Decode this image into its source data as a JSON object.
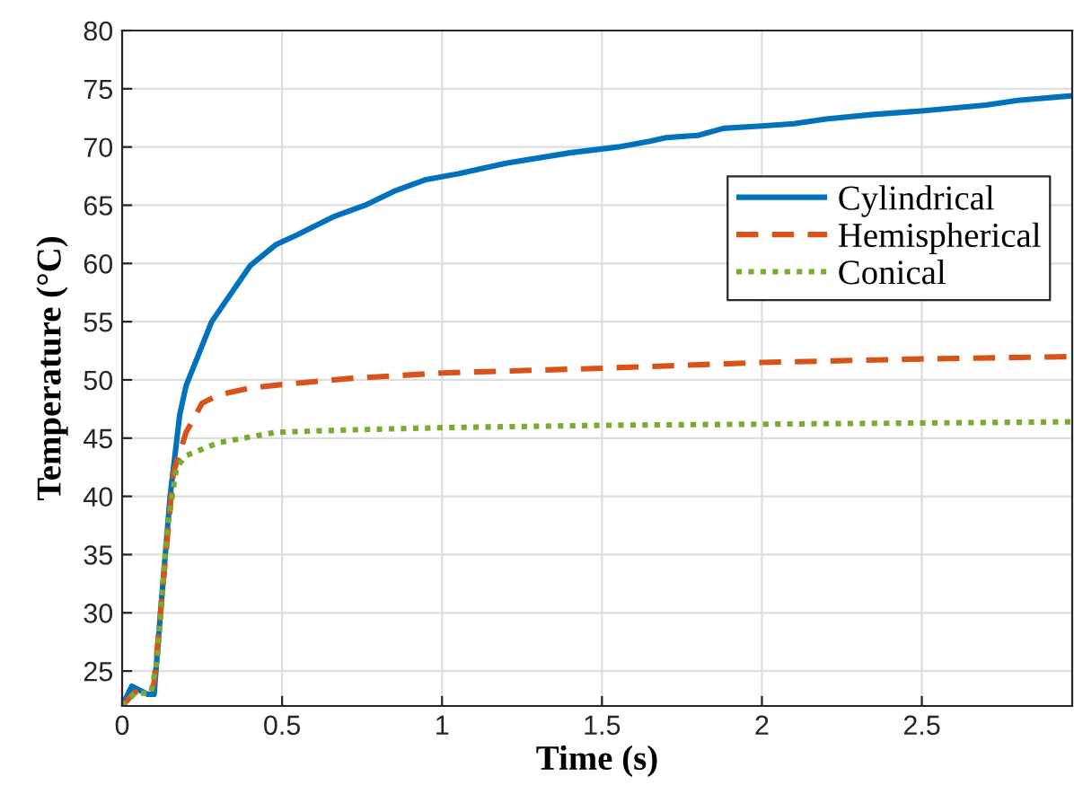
{
  "chart_data": {
    "type": "line",
    "xlabel": "Time (s)",
    "ylabel": "Temperature (°C)",
    "xlim": [
      0,
      2.97
    ],
    "ylim": [
      22,
      80
    ],
    "xticks": [
      0,
      0.5,
      1,
      1.5,
      2,
      2.5
    ],
    "yticks": [
      25,
      30,
      35,
      40,
      45,
      50,
      55,
      60,
      65,
      70,
      75,
      80
    ],
    "grid": true,
    "legend": "top right",
    "series": [
      {
        "name": "Cylindrical",
        "color": "#0072bd",
        "line_style": "solid",
        "x": [
          0,
          0.03,
          0.08,
          0.1,
          0.12,
          0.15,
          0.18,
          0.2,
          0.28,
          0.4,
          0.48,
          0.55,
          0.66,
          0.76,
          0.85,
          0.95,
          1.05,
          1.2,
          1.4,
          1.55,
          1.65,
          1.7,
          1.8,
          1.88,
          2.0,
          2.1,
          2.2,
          2.35,
          2.5,
          2.7,
          2.8,
          2.97
        ],
        "values": [
          22,
          23.7,
          23,
          23,
          30,
          40,
          47,
          49.5,
          55,
          59.8,
          61.6,
          62.5,
          64,
          65,
          66.2,
          67.2,
          67.7,
          68.6,
          69.5,
          70,
          70.5,
          70.8,
          71,
          71.6,
          71.8,
          72,
          72.4,
          72.8,
          73.1,
          73.6,
          74,
          74.4
        ]
      },
      {
        "name": "Hemispherical",
        "color": "#d95319",
        "line_style": "dashed",
        "x": [
          0,
          0.04,
          0.09,
          0.1,
          0.13,
          0.16,
          0.2,
          0.25,
          0.3,
          0.4,
          0.5,
          0.7,
          1.0,
          1.5,
          2.0,
          2.5,
          2.97
        ],
        "values": [
          22,
          23.2,
          23.2,
          24,
          33,
          42,
          45.5,
          48,
          48.7,
          49.3,
          49.6,
          50.1,
          50.6,
          51,
          51.5,
          51.8,
          52
        ]
      },
      {
        "name": "Conical",
        "color": "#77ac30",
        "line_style": "dotted",
        "x": [
          0,
          0.04,
          0.09,
          0.11,
          0.14,
          0.17,
          0.2,
          0.3,
          0.4,
          0.48,
          0.7,
          1.0,
          1.5,
          2.0,
          2.5,
          2.97
        ],
        "values": [
          22,
          23.1,
          23.1,
          26,
          37,
          42.5,
          43.5,
          44.6,
          45.1,
          45.5,
          45.7,
          45.9,
          46.1,
          46.2,
          46.3,
          46.4
        ]
      }
    ]
  }
}
